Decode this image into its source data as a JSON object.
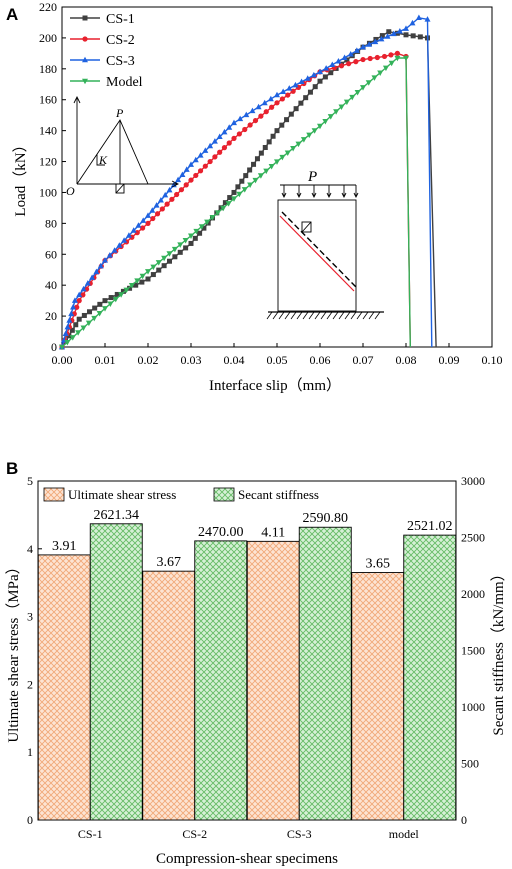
{
  "panel_a": {
    "label": "A",
    "chart_data": {
      "type": "line",
      "xlabel": "Interface slip（mm）",
      "ylabel": "Load（kN）",
      "xlim": [
        0,
        0.1
      ],
      "ylim": [
        0,
        220
      ],
      "xticks": [
        "0.00",
        "0.01",
        "0.02",
        "0.03",
        "0.04",
        "0.05",
        "0.06",
        "0.07",
        "0.08",
        "0.09",
        "0.10"
      ],
      "yticks": [
        "0",
        "20",
        "40",
        "60",
        "80",
        "100",
        "120",
        "140",
        "160",
        "180",
        "200",
        "220"
      ],
      "legend_position": "top-left",
      "series": [
        {
          "name": "CS-1",
          "color": "#404040",
          "marker": "square",
          "x": [
            0,
            0.004,
            0.01,
            0.02,
            0.03,
            0.04,
            0.05,
            0.06,
            0.07,
            0.076,
            0.08,
            0.085,
            0.087
          ],
          "y": [
            0,
            18,
            30,
            44,
            67,
            100,
            140,
            172,
            194,
            204,
            202,
            200,
            0
          ]
        },
        {
          "name": "CS-2",
          "color": "#e8212e",
          "marker": "circle",
          "x": [
            0,
            0.004,
            0.01,
            0.02,
            0.03,
            0.04,
            0.05,
            0.06,
            0.07,
            0.075,
            0.078,
            0.08,
            0.081
          ],
          "y": [
            0,
            30,
            56,
            80,
            108,
            135,
            158,
            178,
            186,
            188,
            190,
            188,
            0
          ]
        },
        {
          "name": "CS-3",
          "color": "#1f62e0",
          "marker": "triangle",
          "x": [
            0,
            0.003,
            0.01,
            0.02,
            0.03,
            0.04,
            0.05,
            0.06,
            0.07,
            0.08,
            0.083,
            0.085,
            0.086
          ],
          "y": [
            0,
            30,
            56,
            85,
            118,
            145,
            163,
            178,
            194,
            206,
            213,
            212,
            0
          ]
        },
        {
          "name": "Model",
          "color": "#34b25a",
          "marker": "triangle-down",
          "x": [
            0,
            0.01,
            0.02,
            0.03,
            0.04,
            0.05,
            0.06,
            0.07,
            0.078,
            0.08,
            0.081
          ],
          "y": [
            0,
            25,
            49,
            72,
            96,
            120,
            143,
            168,
            187,
            187,
            0
          ]
        }
      ],
      "inset_diagram": {
        "peak_label": "P",
        "slope_label": "K",
        "origin_label": "O"
      },
      "specimen_diagram": {
        "load_label": "P"
      }
    }
  },
  "panel_b": {
    "label": "B",
    "chart_data": {
      "type": "bar",
      "xlabel": "Compression-shear specimens",
      "ylabel_left": "Ultimate shear stress（MPa）",
      "ylabel_right": "Secant stiffness（kN/mm）",
      "ylim_left": [
        0,
        5
      ],
      "ylim_right": [
        0,
        3000
      ],
      "yticks_left": [
        "0",
        "1",
        "2",
        "3",
        "4",
        "5"
      ],
      "yticks_right": [
        "0",
        "500",
        "1000",
        "1500",
        "2000",
        "2500",
        "3000"
      ],
      "categories": [
        "CS-1",
        "CS-2",
        "CS-3",
        "model"
      ],
      "legend_position": "top",
      "series": [
        {
          "name": "Ultimate shear stress",
          "axis": "left",
          "color": "#f4b183",
          "values": [
            3.91,
            3.67,
            4.11,
            3.65
          ],
          "labels": [
            "3.91",
            "3.67",
            "4.11",
            "3.65"
          ]
        },
        {
          "name": "Secant stiffness",
          "axis": "right",
          "color": "#8fd18f",
          "values": [
            2621.34,
            2470.0,
            2590.8,
            2521.02
          ],
          "labels": [
            "2621.34",
            "2470.00",
            "2590.80",
            "2521.02"
          ]
        }
      ]
    }
  }
}
